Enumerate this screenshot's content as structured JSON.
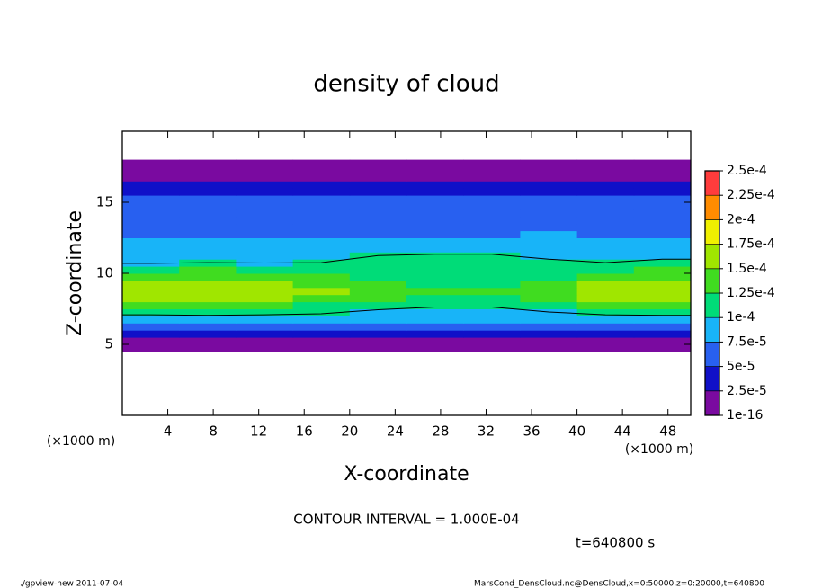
{
  "chart_data": {
    "type": "heatmap",
    "title": "density of cloud",
    "xlabel": "X-coordinate",
    "ylabel": "Z-coordinate",
    "xunit": "(×1000 m)",
    "yunit": "(×1000 m)",
    "contour_interval": {
      "value": 0.0001,
      "label": "CONTOUR INTERVAL = 1.000E-04"
    },
    "time_label": "t=640800 s",
    "footer_left": "./gpview-new   2011-07-04",
    "footer_right": "MarsCond_DensCloud.nc@DensCloud,x=0:50000,z=0:20000,t=640800",
    "xlim": [
      0,
      50
    ],
    "ylim": [
      0,
      20
    ],
    "xticks": [
      4,
      8,
      12,
      16,
      20,
      24,
      28,
      32,
      36,
      40,
      44,
      48
    ],
    "yticks": [
      5,
      10,
      15
    ],
    "x": [
      2.5,
      7.5,
      12.5,
      17.5,
      22.5,
      27.5,
      32.5,
      37.5,
      42.5,
      47.5
    ],
    "z": [
      4.75,
      5.25,
      5.75,
      6.25,
      6.75,
      7.25,
      7.75,
      8.25,
      8.75,
      9.25,
      9.75,
      10.25,
      10.75,
      11.25,
      11.75,
      12.25,
      12.75,
      13.25,
      13.75,
      14.25,
      14.75,
      15.25,
      15.75,
      16.25,
      16.75,
      17.25,
      17.75
    ],
    "values": [
      [
        1e-06,
        1e-06,
        1e-06,
        1e-06,
        1e-06,
        1e-06,
        1e-06,
        1e-06,
        1e-06,
        1e-06
      ],
      [
        1e-05,
        1e-05,
        1e-05,
        1e-05,
        1e-05,
        1e-05,
        1e-05,
        1e-05,
        1e-05,
        1e-05
      ],
      [
        3e-05,
        3e-05,
        3e-05,
        3e-05,
        3e-05,
        3e-05,
        3e-05,
        3e-05,
        3e-05,
        3e-05
      ],
      [
        6e-05,
        6e-05,
        6e-05,
        6e-05,
        5.5e-05,
        5.5e-05,
        5.5e-05,
        6e-05,
        6e-05,
        6e-05
      ],
      [
        8e-05,
        8e-05,
        8e-05,
        8e-05,
        7.8e-05,
        7.8e-05,
        7.8e-05,
        8e-05,
        8e-05,
        8e-05
      ],
      [
        0.00011,
        0.000115,
        0.00011,
        0.000105,
        9.4e-05,
        8.8e-05,
        8.8e-05,
        9.9e-05,
        0.00011,
        0.000115
      ],
      [
        0.00013,
        0.000137,
        0.00013,
        0.000124,
        0.00011,
        0.000104,
        0.000104,
        0.000117,
        0.00013,
        0.000137
      ],
      [
        0.000155,
        0.000163,
        0.000155,
        0.000147,
        0.000132,
        0.000124,
        0.000124,
        0.00014,
        0.000155,
        0.000163
      ],
      [
        0.00016,
        0.000168,
        0.00016,
        0.000152,
        0.000136,
        0.000128,
        0.000128,
        0.000144,
        0.00016,
        0.000168
      ],
      [
        0.00015,
        0.000158,
        0.00015,
        0.000143,
        0.000128,
        0.00012,
        0.00012,
        0.000135,
        0.00015,
        0.000158
      ],
      [
        0.000135,
        0.000142,
        0.000135,
        0.000128,
        0.000115,
        0.000108,
        0.000108,
        0.000122,
        0.000135,
        0.000142
      ],
      [
        0.00012,
        0.000126,
        0.00012,
        0.000114,
        0.000108,
        0.000102,
        0.000102,
        0.000108,
        0.00012,
        0.000126
      ],
      [
        9.8e-05,
        0.0001,
        9.9e-05,
        0.0001,
        0.000105,
        0.000108,
        0.000108,
        0.000104,
        0.0001,
        0.000105
      ],
      [
        8.8e-05,
        9e-05,
        9e-05,
        9.2e-05,
        0.0001,
        0.000103,
        0.000103,
        9.6e-05,
        9.2e-05,
        9.5e-05
      ],
      [
        8e-05,
        8e-05,
        8e-05,
        8.2e-05,
        8.6e-05,
        8.8e-05,
        8.8e-05,
        8.5e-05,
        8.2e-05,
        8.2e-05
      ],
      [
        7.5e-05,
        7.5e-05,
        7.5e-05,
        7.6e-05,
        7.8e-05,
        8e-05,
        8e-05,
        7.8e-05,
        7.6e-05,
        7.5e-05
      ],
      [
        7e-05,
        7e-05,
        7e-05,
        7e-05,
        7.2e-05,
        7.4e-05,
        7.4e-05,
        7.6e-05,
        7e-05,
        7e-05
      ],
      [
        6.5e-05,
        6.5e-05,
        6.5e-05,
        6.5e-05,
        6.6e-05,
        6.8e-05,
        7e-05,
        7.2e-05,
        6.5e-05,
        6.5e-05
      ],
      [
        6e-05,
        6e-05,
        6e-05,
        6e-05,
        6e-05,
        6.2e-05,
        6.5e-05,
        6.8e-05,
        6e-05,
        6e-05
      ],
      [
        5.5e-05,
        5.5e-05,
        5.5e-05,
        5.5e-05,
        5.5e-05,
        5.6e-05,
        6e-05,
        6.2e-05,
        5.5e-05,
        5.5e-05
      ],
      [
        5.5e-05,
        5.5e-05,
        5.5e-05,
        5.4e-05,
        5.4e-05,
        5.4e-05,
        5.6e-05,
        5.8e-05,
        5.5e-05,
        5.5e-05
      ],
      [
        5e-05,
        5e-05,
        5e-05,
        5e-05,
        5e-05,
        5e-05,
        5.2e-05,
        5.4e-05,
        5e-05,
        5e-05
      ],
      [
        4e-05,
        4e-05,
        4e-05,
        4e-05,
        4e-05,
        4e-05,
        4.2e-05,
        4.4e-05,
        4e-05,
        4e-05
      ],
      [
        3e-05,
        3e-05,
        3e-05,
        3e-05,
        3e-05,
        3e-05,
        3e-05,
        3e-05,
        3e-05,
        3e-05
      ],
      [
        1e-05,
        1e-05,
        1e-05,
        1e-05,
        1e-05,
        1e-05,
        1e-05,
        1e-05,
        1e-05,
        1e-05
      ],
      [
        1e-06,
        1e-06,
        1e-06,
        1e-06,
        1e-06,
        1e-06,
        1e-06,
        1e-06,
        1e-06,
        1e-06
      ],
      [
        1e-06,
        1e-06,
        1e-06,
        1e-06,
        1e-06,
        1e-06,
        1e-06,
        1e-06,
        1e-06,
        1e-06
      ]
    ],
    "levels": [
      1e-16,
      {
        "value": 2.5e-05,
        "label": "2.5e-5"
      },
      {
        "value": 5e-05,
        "label": "5e-5"
      },
      {
        "value": 7.5e-05,
        "label": "7.5e-5"
      },
      {
        "value": 0.0001,
        "label": "1e-4"
      },
      {
        "value": 0.000125,
        "label": "1.25e-4"
      },
      {
        "value": 0.00015,
        "label": "1.5e-4"
      },
      {
        "value": 0.000175,
        "label": "1.75e-4"
      },
      {
        "value": 0.0002,
        "label": "2e-4"
      },
      {
        "value": 0.000225,
        "label": "2.25e-4"
      },
      {
        "value": 0.00025,
        "label": "2.5e-4"
      }
    ],
    "colors": [
      "#7a0aa0",
      "#1010c8",
      "#2860f0",
      "#18b4f8",
      "#00dc78",
      "#40dc20",
      "#a0e600",
      "#f0f000",
      "#ff8c00",
      "#ff3c3c"
    ]
  }
}
